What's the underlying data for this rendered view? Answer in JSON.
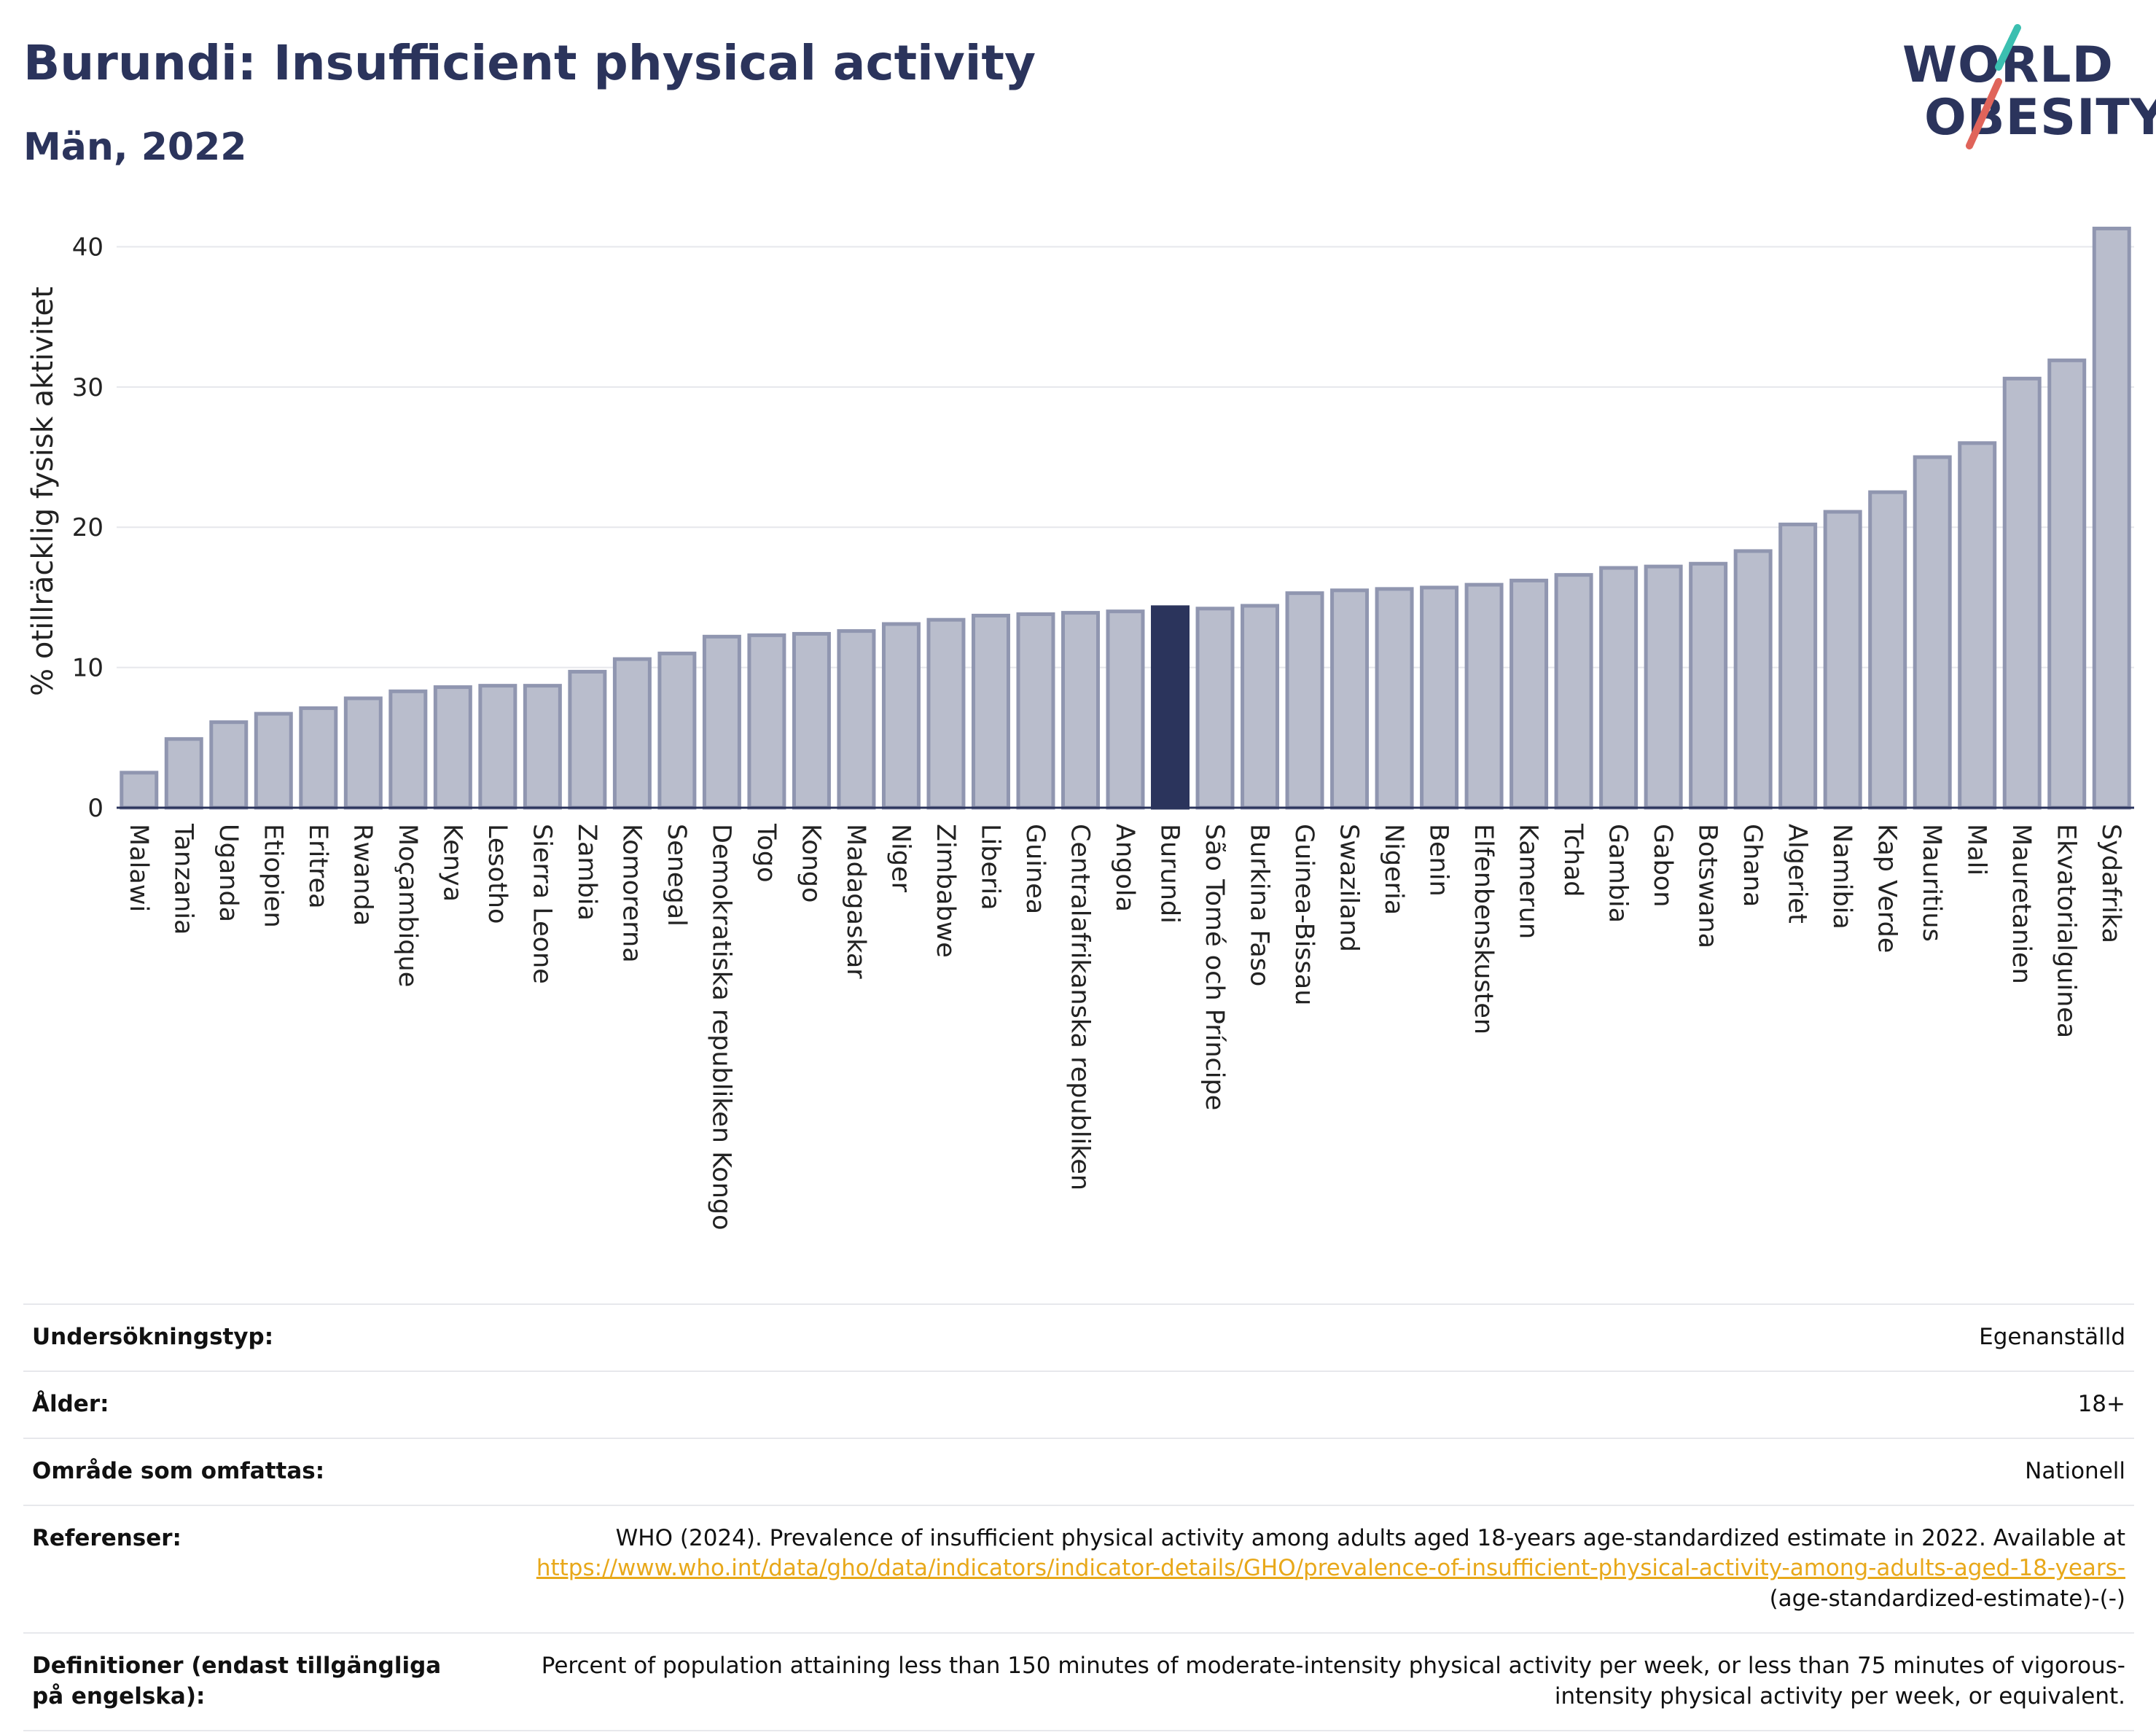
{
  "title": "Burundi: Insufficient physical activity",
  "subtitle": "Män, 2022",
  "logo": {
    "line1": "WORLD",
    "line2": "OBESITY",
    "slash_colors": [
      "#3bbfb0",
      "#e0645a"
    ]
  },
  "colors": {
    "bar": "#b9bdcc",
    "bar_stroke": "#9096b0",
    "highlight": "#2b345c",
    "axis_text": "#222222"
  },
  "chart_data": {
    "type": "bar",
    "title": "Burundi: Insufficient physical activity",
    "subtitle": "Män, 2022",
    "xlabel": "",
    "ylabel": "% otillräcklig fysisk aktivitet",
    "ylim": [
      0,
      42
    ],
    "yticks": [
      0,
      10,
      20,
      30,
      40
    ],
    "grid": true,
    "highlight": "Burundi",
    "categories": [
      "Malawi",
      "Tanzania",
      "Uganda",
      "Etiopien",
      "Eritrea",
      "Rwanda",
      "Moçambique",
      "Kenya",
      "Lesotho",
      "Sierra Leone",
      "Zambia",
      "Komorerna",
      "Senegal",
      "Demokratiska republiken Kongo",
      "Togo",
      "Kongo",
      "Madagaskar",
      "Niger",
      "Zimbabwe",
      "Liberia",
      "Guinea",
      "Centralafrikanska republiken",
      "Angola",
      "Burundi",
      "São Tomé och Príncipe",
      "Burkina Faso",
      "Guinea-Bissau",
      "Swaziland",
      "Nigeria",
      "Benin",
      "Elfenbenskusten",
      "Kamerun",
      "Tchad",
      "Gambia",
      "Gabon",
      "Botswana",
      "Ghana",
      "Algeriet",
      "Namibia",
      "Kap Verde",
      "Mauritius",
      "Mali",
      "Mauretanien",
      "Ekvatorialguinea",
      "Sydafrika"
    ],
    "values": [
      2.5,
      4.9,
      6.1,
      6.7,
      7.1,
      7.8,
      8.3,
      8.6,
      8.7,
      8.7,
      9.7,
      10.6,
      11.0,
      12.2,
      12.3,
      12.4,
      12.6,
      13.1,
      13.4,
      13.7,
      13.8,
      13.9,
      14.0,
      14.3,
      14.2,
      14.4,
      15.3,
      15.5,
      15.6,
      15.7,
      15.9,
      16.2,
      16.6,
      17.1,
      17.2,
      17.4,
      18.3,
      20.2,
      21.1,
      22.5,
      25.0,
      26.0,
      30.6,
      31.9,
      41.3
    ]
  },
  "table": [
    {
      "label": "Undersökningstyp:",
      "value": "Egenanställd"
    },
    {
      "label": "Ålder:",
      "value": "18+"
    },
    {
      "label": "Område som omfattas:",
      "value": "Nationell"
    },
    {
      "label": "Referenser:",
      "value": "WHO (2024). Prevalence of insufficient physical activity among adults aged 18-years age-standardized estimate in 2022. Available at",
      "link": "https://www.who.int/data/gho/data/indicators/indicator-details/GHO/prevalence-of-insufficient-physical-activity-among-adults-aged-18-years-",
      "suffix": "(age-standardized-estimate)-(-)"
    },
    {
      "label": "Definitioner (endast tillgängliga på engelska):",
      "value": "Percent of population attaining less than 150 minutes of moderate-intensity physical activity per week, or less than 75 minutes of vigorous-intensity physical activity per week, or equivalent."
    }
  ]
}
